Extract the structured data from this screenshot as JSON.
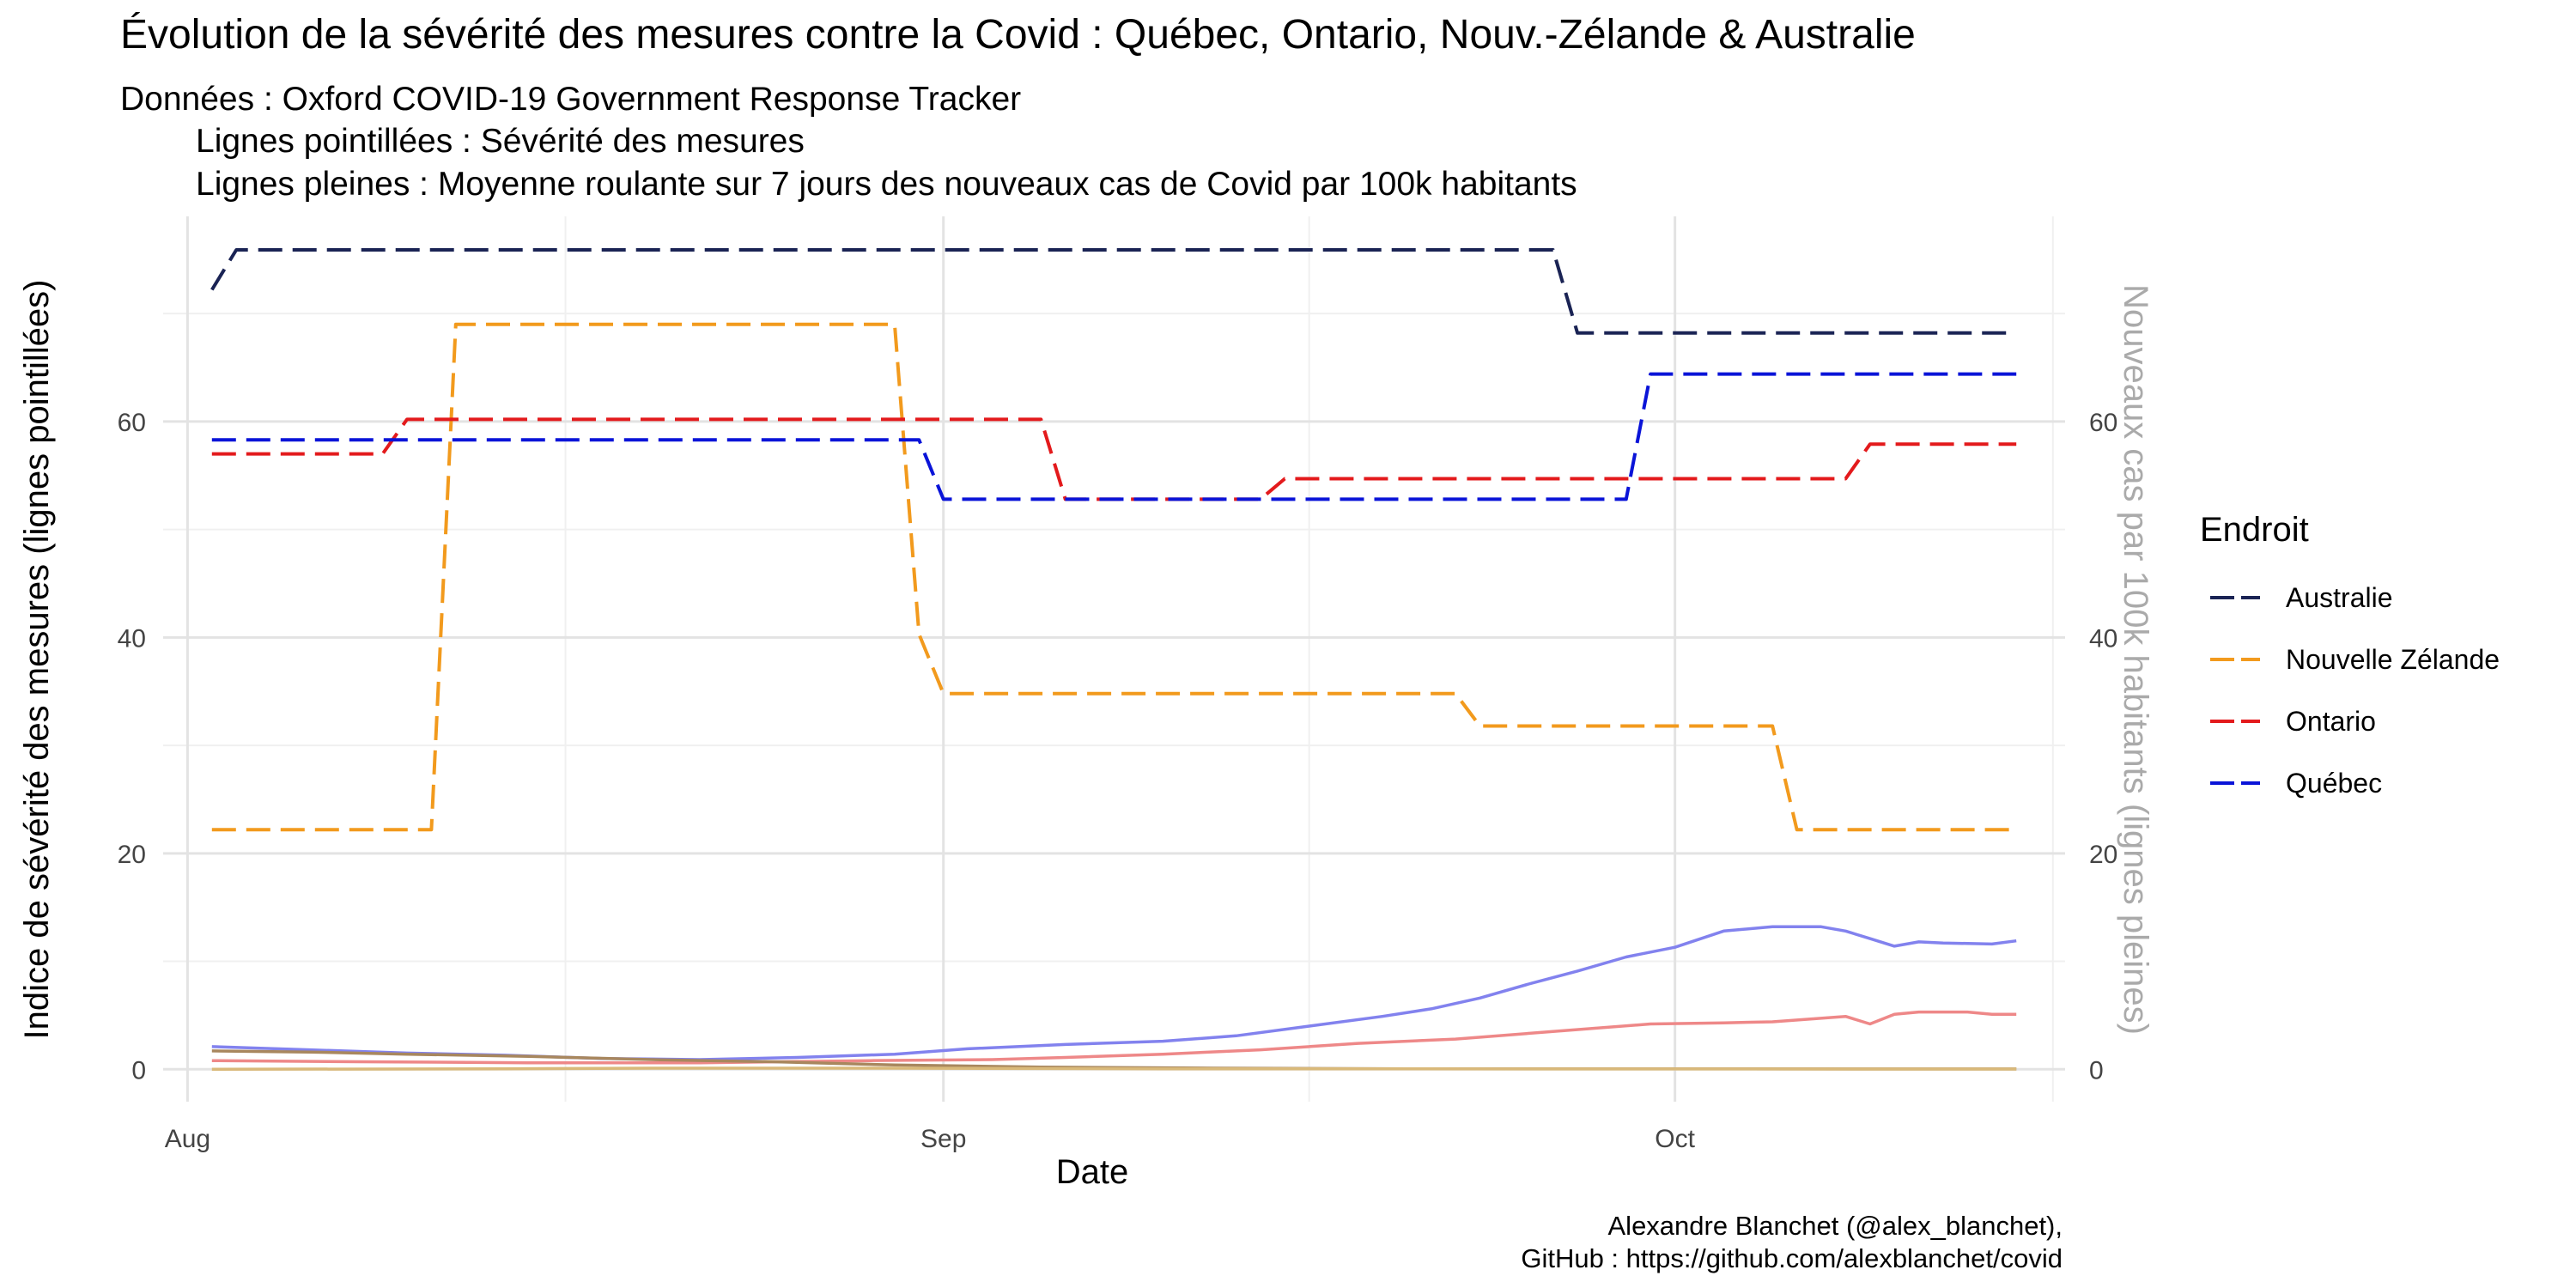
{
  "chart_data": {
    "type": "line",
    "title": "Évolution de la sévérité des mesures contre la Covid : Québec, Ontario, Nouv.-Zélande & Australie",
    "subtitle_lines": [
      "Données : Oxford COVID-19 Government Response Tracker",
      "Lignes pointillées : Sévérité des mesures",
      "Lignes pleines : Moyenne roulante sur 7 jours des nouveaux cas de Covid par 100k habitants"
    ],
    "xlabel": "Date",
    "ylabel_left": "Indice de sévérité des mesures (lignes pointillées)",
    "ylabel_right": "Nouveaux cas par 100k habitants (lignes pleines)",
    "x_ticks": [
      {
        "date": "2020-08-01",
        "label": "Aug"
      },
      {
        "date": "2020-09-01",
        "label": "Sep"
      },
      {
        "date": "2020-10-01",
        "label": "Oct"
      }
    ],
    "xlim": [
      "2020-07-31",
      "2020-10-17"
    ],
    "ylim": [
      -3,
      79
    ],
    "y_ticks": [
      0,
      20,
      40,
      60
    ],
    "grid": true,
    "legend": {
      "title": "Endroit",
      "placement": "right"
    },
    "caption_lines": [
      "Alexandre Blanchet (@alex_blanchet),",
      "GitHub : https://github.com/alexblanchet/covid"
    ],
    "series": [
      {
        "name": "Australie",
        "color": "#1a2354",
        "style": "dashed",
        "points": [
          [
            "2020-08-02",
            72.2
          ],
          [
            "2020-08-03",
            75.9
          ],
          [
            "2020-09-26",
            75.9
          ],
          [
            "2020-09-27",
            68.2
          ],
          [
            "2020-10-15",
            68.2
          ]
        ]
      },
      {
        "name": "Nouvelle Zélande",
        "color": "#f29a1d",
        "style": "dashed",
        "points": [
          [
            "2020-08-02",
            22.2
          ],
          [
            "2020-08-11",
            22.2
          ],
          [
            "2020-08-12",
            69.0
          ],
          [
            "2020-08-30",
            69.0
          ],
          [
            "2020-08-31",
            40.3
          ],
          [
            "2020-09-01",
            34.8
          ],
          [
            "2020-09-22",
            34.8
          ],
          [
            "2020-09-23",
            31.8
          ],
          [
            "2020-10-05",
            31.8
          ],
          [
            "2020-10-06",
            22.2
          ],
          [
            "2020-10-15",
            22.2
          ]
        ]
      },
      {
        "name": "Ontario",
        "color": "#e31a1c",
        "style": "dashed",
        "points": [
          [
            "2020-08-02",
            57.0
          ],
          [
            "2020-08-09",
            57.0
          ],
          [
            "2020-08-10",
            60.2
          ],
          [
            "2020-09-05",
            60.2
          ],
          [
            "2020-09-06",
            52.8
          ],
          [
            "2020-09-14",
            52.8
          ],
          [
            "2020-09-15",
            54.7
          ],
          [
            "2020-10-08",
            54.7
          ],
          [
            "2020-10-09",
            57.9
          ],
          [
            "2020-10-15",
            57.9
          ]
        ]
      },
      {
        "name": "Québec",
        "color": "#0a14d8",
        "style": "dashed",
        "points": [
          [
            "2020-08-02",
            58.3
          ],
          [
            "2020-08-31",
            58.3
          ],
          [
            "2020-09-01",
            52.8
          ],
          [
            "2020-09-29",
            52.8
          ],
          [
            "2020-09-30",
            64.4
          ],
          [
            "2020-10-15",
            64.4
          ]
        ]
      },
      {
        "name": "Québec",
        "color": "#8282ee",
        "style": "solid",
        "points": [
          [
            "2020-08-02",
            2.1
          ],
          [
            "2020-08-06",
            1.8
          ],
          [
            "2020-08-10",
            1.5
          ],
          [
            "2020-08-14",
            1.3
          ],
          [
            "2020-08-18",
            1.0
          ],
          [
            "2020-08-22",
            0.9
          ],
          [
            "2020-08-26",
            1.1
          ],
          [
            "2020-08-30",
            1.4
          ],
          [
            "2020-09-02",
            1.9
          ],
          [
            "2020-09-06",
            2.3
          ],
          [
            "2020-09-10",
            2.6
          ],
          [
            "2020-09-13",
            3.1
          ],
          [
            "2020-09-16",
            4.0
          ],
          [
            "2020-09-19",
            4.9
          ],
          [
            "2020-09-21",
            5.6
          ],
          [
            "2020-09-23",
            6.6
          ],
          [
            "2020-09-25",
            7.9
          ],
          [
            "2020-09-27",
            9.1
          ],
          [
            "2020-09-29",
            10.4
          ],
          [
            "2020-10-01",
            11.3
          ],
          [
            "2020-10-03",
            12.8
          ],
          [
            "2020-10-05",
            13.2
          ],
          [
            "2020-10-07",
            13.2
          ],
          [
            "2020-10-08",
            12.8
          ],
          [
            "2020-10-09",
            12.1
          ],
          [
            "2020-10-10",
            11.4
          ],
          [
            "2020-10-11",
            11.8
          ],
          [
            "2020-10-12",
            11.7
          ],
          [
            "2020-10-14",
            11.6
          ],
          [
            "2020-10-15",
            11.9
          ]
        ]
      },
      {
        "name": "Ontario",
        "color": "#ee8888",
        "style": "solid",
        "points": [
          [
            "2020-08-02",
            0.8
          ],
          [
            "2020-08-08",
            0.7
          ],
          [
            "2020-08-15",
            0.6
          ],
          [
            "2020-08-22",
            0.6
          ],
          [
            "2020-08-29",
            0.8
          ],
          [
            "2020-09-03",
            0.9
          ],
          [
            "2020-09-06",
            1.1
          ],
          [
            "2020-09-10",
            1.4
          ],
          [
            "2020-09-14",
            1.8
          ],
          [
            "2020-09-18",
            2.4
          ],
          [
            "2020-09-22",
            2.8
          ],
          [
            "2020-09-26",
            3.5
          ],
          [
            "2020-09-30",
            4.2
          ],
          [
            "2020-10-03",
            4.3
          ],
          [
            "2020-10-05",
            4.4
          ],
          [
            "2020-10-08",
            4.9
          ],
          [
            "2020-10-09",
            4.2
          ],
          [
            "2020-10-10",
            5.1
          ],
          [
            "2020-10-11",
            5.3
          ],
          [
            "2020-10-13",
            5.3
          ],
          [
            "2020-10-14",
            5.1
          ],
          [
            "2020-10-15",
            5.1
          ]
        ]
      },
      {
        "name": "Australie",
        "color": "#a8875e",
        "style": "solid",
        "points": [
          [
            "2020-08-02",
            1.7
          ],
          [
            "2020-08-06",
            1.6
          ],
          [
            "2020-08-10",
            1.4
          ],
          [
            "2020-08-15",
            1.2
          ],
          [
            "2020-08-20",
            0.9
          ],
          [
            "2020-08-25",
            0.7
          ],
          [
            "2020-08-30",
            0.4
          ],
          [
            "2020-09-05",
            0.2
          ],
          [
            "2020-09-12",
            0.1
          ],
          [
            "2020-09-20",
            0.05
          ],
          [
            "2020-10-15",
            0.03
          ]
        ]
      },
      {
        "name": "Nouvelle Zélande",
        "color": "#d9b97a",
        "style": "solid",
        "points": [
          [
            "2020-08-02",
            0.0
          ],
          [
            "2020-08-14",
            0.05
          ],
          [
            "2020-08-20",
            0.1
          ],
          [
            "2020-08-30",
            0.1
          ],
          [
            "2020-09-10",
            0.05
          ],
          [
            "2020-10-15",
            0.02
          ]
        ]
      }
    ]
  }
}
